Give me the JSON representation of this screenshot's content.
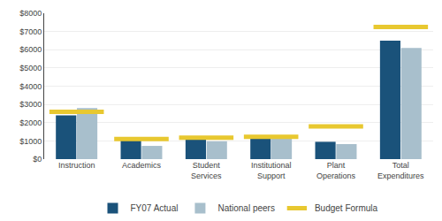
{
  "chart_data": {
    "type": "bar",
    "categories": [
      "Instruction",
      "Academics",
      "Student\nServices",
      "Institutional\nSupport",
      "Plant\nOperations",
      "Total\nExpenditures"
    ],
    "series": [
      {
        "name": "FY07 Actual",
        "color": "#1a527a",
        "values": [
          2400,
          1075,
          1175,
          1250,
          950,
          6500
        ]
      },
      {
        "name": "National peers",
        "color": "#a8bfcc",
        "values": [
          2800,
          725,
          975,
          1150,
          825,
          6100
        ]
      },
      {
        "name": "Budget Formula",
        "color": "#e8c830",
        "type": "scatter",
        "marker": "line",
        "values": [
          2600,
          1100,
          1175,
          1225,
          1800,
          7250
        ]
      }
    ],
    "ylim": [
      0,
      8000
    ],
    "yticks": [
      {
        "value": 0,
        "label": "$0"
      },
      {
        "value": 1000,
        "label": "$1000"
      },
      {
        "value": 2000,
        "label": "$2000"
      },
      {
        "value": 3000,
        "label": "$3000"
      },
      {
        "value": 4000,
        "label": "$4000"
      },
      {
        "value": 5000,
        "label": "$5000"
      },
      {
        "value": 6000,
        "label": "$6000"
      },
      {
        "value": 7000,
        "label": "$7000"
      },
      {
        "value": 8000,
        "label": "$8000"
      }
    ],
    "grid": true,
    "legend": "bottom"
  }
}
